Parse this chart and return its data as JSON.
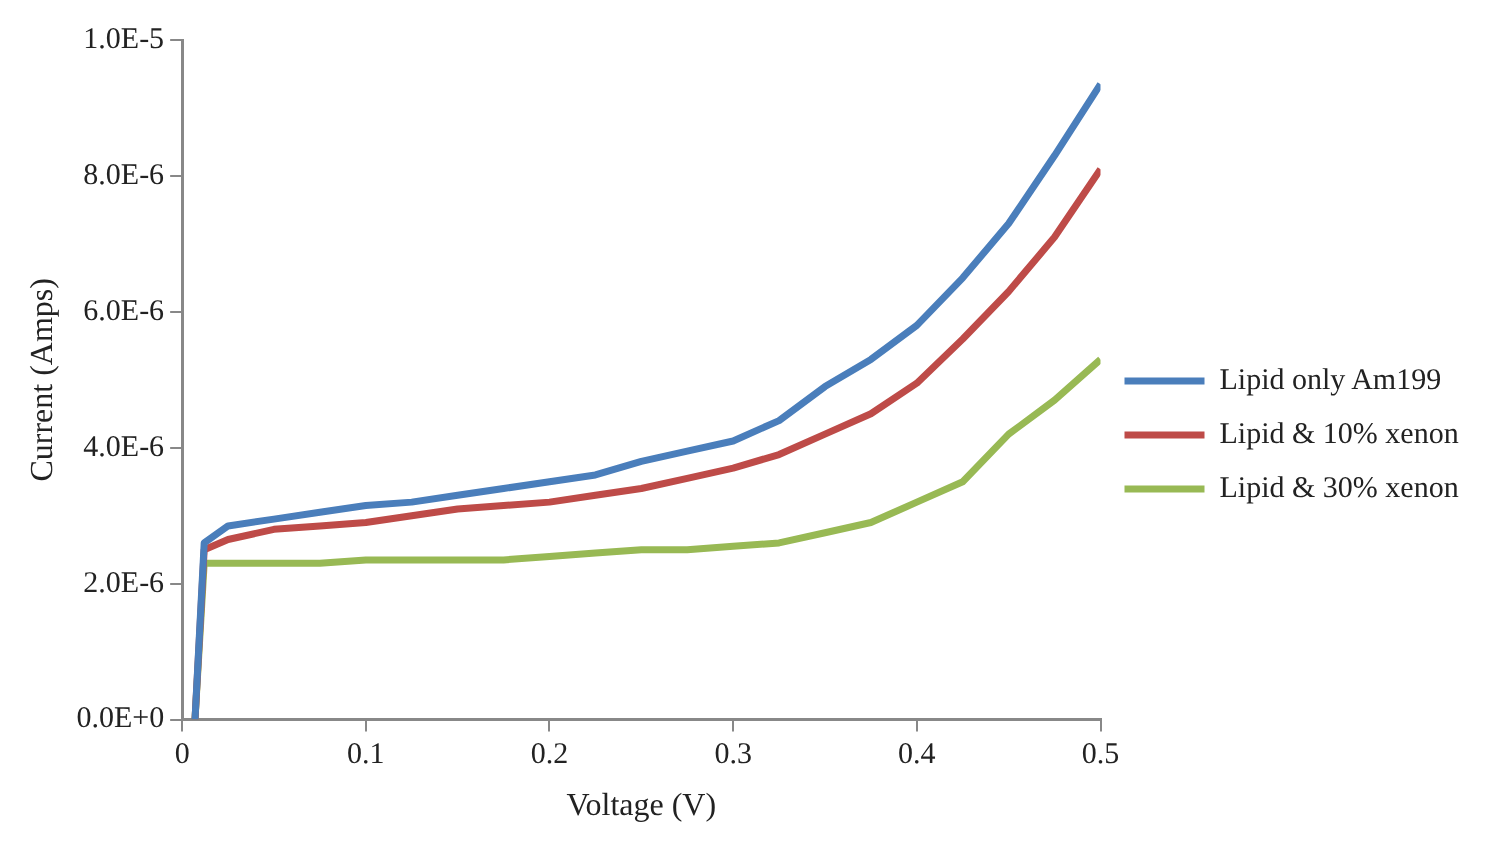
{
  "chart_data": {
    "type": "line",
    "xlabel": "Voltage (V)",
    "ylabel": "Current (Amps)",
    "x": [
      0.007,
      0.012,
      0.025,
      0.05,
      0.075,
      0.1,
      0.125,
      0.15,
      0.175,
      0.2,
      0.225,
      0.25,
      0.275,
      0.3,
      0.325,
      0.35,
      0.375,
      0.4,
      0.425,
      0.45,
      0.475,
      0.5
    ],
    "series": [
      {
        "name": "Lipid only Am199",
        "color": "#4a7ebb",
        "values": [
          0,
          2.6e-06,
          2.85e-06,
          2.95e-06,
          3.05e-06,
          3.15e-06,
          3.2e-06,
          3.3e-06,
          3.4e-06,
          3.5e-06,
          3.6e-06,
          3.8e-06,
          3.95e-06,
          4.1e-06,
          4.4e-06,
          4.9e-06,
          5.3e-06,
          5.8e-06,
          6.5e-06,
          7.3e-06,
          8.3e-06,
          9.35e-06
        ]
      },
      {
        "name": "Lipid & 10% xenon",
        "color": "#be4b48",
        "values": [
          0,
          2.5e-06,
          2.65e-06,
          2.8e-06,
          2.85e-06,
          2.9e-06,
          3e-06,
          3.1e-06,
          3.15e-06,
          3.2e-06,
          3.3e-06,
          3.4e-06,
          3.55e-06,
          3.7e-06,
          3.9e-06,
          4.2e-06,
          4.5e-06,
          4.95e-06,
          5.6e-06,
          6.3e-06,
          7.1e-06,
          8.1e-06
        ]
      },
      {
        "name": "Lipid & 30% xenon",
        "color": "#98b954",
        "values": [
          0,
          2.3e-06,
          2.3e-06,
          2.3e-06,
          2.3e-06,
          2.35e-06,
          2.35e-06,
          2.35e-06,
          2.35e-06,
          2.4e-06,
          2.45e-06,
          2.5e-06,
          2.5e-06,
          2.55e-06,
          2.6e-06,
          2.75e-06,
          2.9e-06,
          3.2e-06,
          3.5e-06,
          4.2e-06,
          4.7e-06,
          5.3e-06
        ]
      }
    ],
    "xlim": [
      0,
      0.5
    ],
    "xticks": [
      0,
      0.1,
      0.2,
      0.3,
      0.4,
      0.5
    ],
    "ylim": [
      0,
      1e-05
    ],
    "yticks": [
      {
        "value": 0,
        "label": "0.0E+0"
      },
      {
        "value": 2e-06,
        "label": "2.0E-6"
      },
      {
        "value": 4e-06,
        "label": "4.0E-6"
      },
      {
        "value": 6e-06,
        "label": "6.0E-6"
      },
      {
        "value": 8e-06,
        "label": "8.0E-6"
      },
      {
        "value": 1e-05,
        "label": "1.0E-5"
      }
    ],
    "grid": false,
    "legend": "right",
    "marker": "none",
    "line_style": "solid"
  }
}
